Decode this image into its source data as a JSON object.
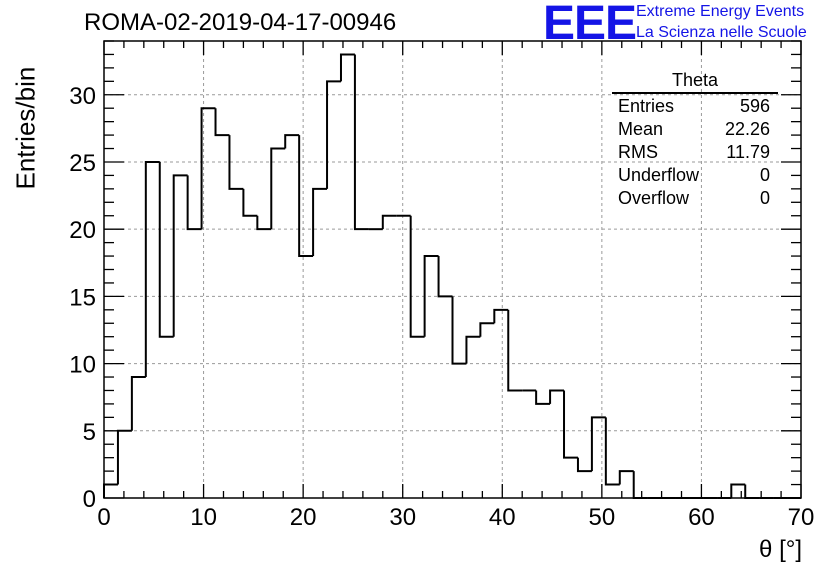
{
  "title": "ROMA-02-2019-04-17-00946",
  "logo": {
    "text": "EEE",
    "line1": "Extreme Energy Events",
    "line2": "La Scienza nelle Scuole",
    "color": "#1414e6"
  },
  "stats": {
    "title": "Theta",
    "rows": [
      {
        "label": "Entries",
        "value": "596"
      },
      {
        "label": "Mean",
        "value": "22.26"
      },
      {
        "label": "RMS",
        "value": "11.79"
      },
      {
        "label": "Underflow",
        "value": "0"
      },
      {
        "label": "Overflow",
        "value": "0"
      }
    ]
  },
  "chart_data": {
    "type": "bar",
    "style": "step-histogram",
    "title": "ROMA-02-2019-04-17-00946",
    "xlabel": "θ [°]",
    "ylabel": "Entries/bin",
    "xlim": [
      0,
      70
    ],
    "ylim": [
      0,
      34
    ],
    "bin_width": 1.4,
    "bin_start": 0,
    "xticks": [
      0,
      10,
      20,
      30,
      40,
      50,
      60,
      70
    ],
    "yticks": [
      0,
      5,
      10,
      15,
      20,
      25,
      30
    ],
    "grid": true,
    "values": [
      1,
      5,
      9,
      25,
      12,
      24,
      20,
      29,
      27,
      23,
      21,
      20,
      26,
      27,
      18,
      23,
      31,
      33,
      20,
      20,
      21,
      21,
      12,
      18,
      15,
      10,
      12,
      13,
      14,
      8,
      8,
      7,
      8,
      3,
      2,
      6,
      1,
      2,
      0,
      0,
      0,
      0,
      0,
      0,
      0,
      1,
      0,
      0,
      0,
      0
    ]
  }
}
